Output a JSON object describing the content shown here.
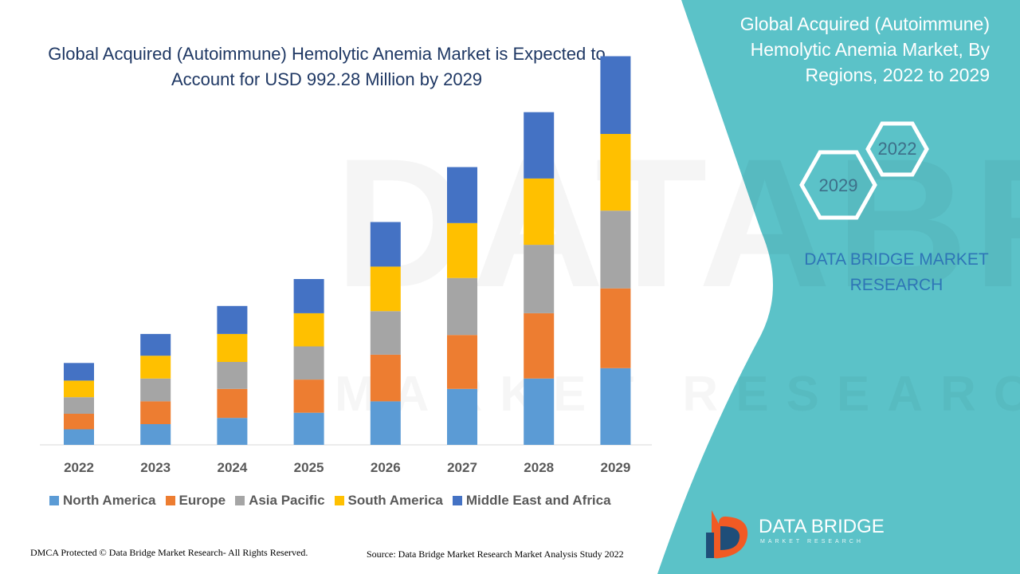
{
  "chart_data": {
    "type": "bar",
    "stacked": true,
    "title": "Global Acquired (Autoimmune) Hemolytic Anemia Market is Expected to Account for USD 992.28 Million by 2029",
    "categories": [
      "2022",
      "2023",
      "2024",
      "2025",
      "2026",
      "2027",
      "2028",
      "2029"
    ],
    "series": [
      {
        "name": "North America",
        "color": "#5b9bd5",
        "values": [
          15,
          20,
          26,
          31,
          42,
          54,
          64,
          74
        ]
      },
      {
        "name": "Europe",
        "color": "#ed7d31",
        "values": [
          15,
          22,
          28,
          32,
          45,
          52,
          63,
          77
        ]
      },
      {
        "name": "Asia Pacific",
        "color": "#a5a5a5",
        "values": [
          16,
          22,
          26,
          32,
          42,
          55,
          66,
          75
        ]
      },
      {
        "name": "South America",
        "color": "#ffc000",
        "values": [
          16,
          22,
          27,
          32,
          43,
          53,
          64,
          74
        ]
      },
      {
        "name": "Middle East and Africa",
        "color": "#4472c4",
        "values": [
          17,
          21,
          27,
          33,
          43,
          54,
          64,
          75
        ]
      }
    ],
    "xlabel": "",
    "ylabel": "",
    "ylim": [
      0,
      400
    ],
    "grid": false,
    "legend_position": "bottom"
  },
  "sidebar": {
    "title": "Global Acquired (Autoimmune) Hemolytic Anemia Market, By Regions, 2022 to 2029",
    "hex_top_year": "2022",
    "hex_bottom_year": "2029",
    "brand": "DATA BRIDGE MARKET RESEARCH"
  },
  "logo": {
    "name": "DATA BRIDGE",
    "tagline": "MARKET RESEARCH"
  },
  "footer": {
    "copyright": "DMCA Protected © Data Bridge Market Research- All Rights Reserved.",
    "source": "Source: Data Bridge Market Research Market Analysis Study 2022"
  },
  "colors": {
    "panel": "#5bc2c8",
    "title": "#1f3864"
  }
}
